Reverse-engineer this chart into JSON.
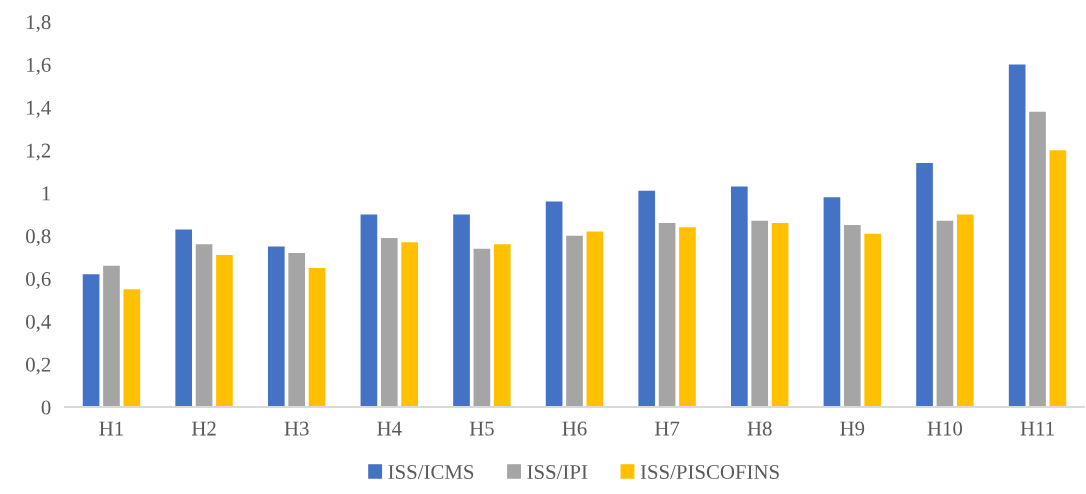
{
  "chart_data": {
    "type": "bar",
    "categories": [
      "H1",
      "H2",
      "H3",
      "H4",
      "H5",
      "H6",
      "H7",
      "H8",
      "H9",
      "H10",
      "H11"
    ],
    "series": [
      {
        "name": "ISS/ICMS",
        "color": "#4472c4",
        "values": [
          0.62,
          0.83,
          0.75,
          0.9,
          0.9,
          0.96,
          1.01,
          1.03,
          0.98,
          1.14,
          1.6
        ]
      },
      {
        "name": "ISS/IPI",
        "color": "#a5a5a5",
        "values": [
          0.66,
          0.76,
          0.72,
          0.79,
          0.74,
          0.8,
          0.86,
          0.87,
          0.85,
          0.87,
          1.38
        ]
      },
      {
        "name": "ISS/PISCOFINS",
        "color": "#ffc000",
        "values": [
          0.55,
          0.71,
          0.65,
          0.77,
          0.76,
          0.82,
          0.84,
          0.86,
          0.81,
          0.9,
          1.2
        ]
      }
    ],
    "ylim": [
      0,
      1.8
    ],
    "yticks": [
      {
        "value": 0,
        "label": "0"
      },
      {
        "value": 0.2,
        "label": "0,2"
      },
      {
        "value": 0.4,
        "label": "0,4"
      },
      {
        "value": 0.6,
        "label": "0,6"
      },
      {
        "value": 0.8,
        "label": "0,8"
      },
      {
        "value": 1,
        "label": "1"
      },
      {
        "value": 1.2,
        "label": "1,2"
      },
      {
        "value": 1.4,
        "label": "1,4"
      },
      {
        "value": 1.6,
        "label": "1,6"
      },
      {
        "value": 1.8,
        "label": "1,8"
      }
    ],
    "grid": false,
    "legend": "bottom"
  }
}
